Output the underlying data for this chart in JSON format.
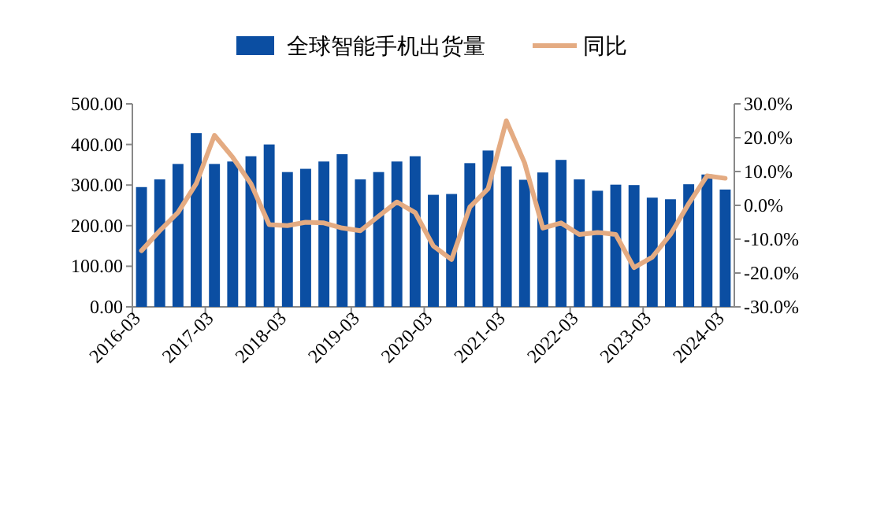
{
  "chart_data": {
    "type": "bar",
    "categories": [
      "2016-03",
      null,
      null,
      null,
      "2017-03",
      null,
      null,
      null,
      "2018-03",
      null,
      null,
      null,
      "2019-03",
      null,
      null,
      null,
      "2020-03",
      null,
      null,
      null,
      "2021-03",
      null,
      null,
      null,
      "2022-03",
      null,
      null,
      null,
      "2023-03",
      null,
      null,
      null,
      "2024-03"
    ],
    "series": [
      {
        "name": "全球智能手机出货量",
        "color": "#0b4ea2",
        "values": [
          295,
          314,
          352,
          428,
          352,
          358,
          371,
          400,
          332,
          340,
          358,
          376,
          314,
          332,
          358,
          371,
          276,
          278,
          354,
          385,
          346,
          313,
          331,
          362,
          314,
          286,
          301,
          300,
          269,
          265,
          302,
          326,
          289
        ]
      },
      {
        "name": "同比",
        "type": "line",
        "axis": "y2",
        "color": "#e4ab82",
        "values": [
          -13.4,
          -7.5,
          -2.1,
          6.4,
          20.7,
          14.2,
          6.4,
          -5.7,
          -6,
          -5,
          -5.2,
          -6.7,
          -7.5,
          -3.2,
          1,
          -2.1,
          -12,
          -16,
          -0.5,
          4.9,
          25,
          12.6,
          -6.7,
          -5.2,
          -8.6,
          -8,
          -8.6,
          -18.4,
          -15.3,
          -8.6,
          0.5,
          8.7,
          8
        ]
      }
    ],
    "ylim": [
      0,
      500
    ],
    "yticks": [
      {
        "value": 0,
        "label": "0.00"
      },
      {
        "value": 100,
        "label": "100.00"
      },
      {
        "value": 200,
        "label": "200.00"
      },
      {
        "value": 300,
        "label": "300.00"
      },
      {
        "value": 400,
        "label": "400.00"
      },
      {
        "value": 500,
        "label": "500.00"
      }
    ],
    "y2lim": [
      -30,
      30
    ],
    "y2ticks": [
      {
        "value": -30,
        "label": "-30.0%"
      },
      {
        "value": -20,
        "label": "-20.0%"
      },
      {
        "value": -10,
        "label": "-10.0%"
      },
      {
        "value": 0,
        "label": "0.0%"
      },
      {
        "value": 10,
        "label": "10.0%"
      },
      {
        "value": 20,
        "label": "20.0%"
      },
      {
        "value": 30,
        "label": "30.0%"
      }
    ],
    "legend": "top",
    "grid": false,
    "marker": "none"
  }
}
